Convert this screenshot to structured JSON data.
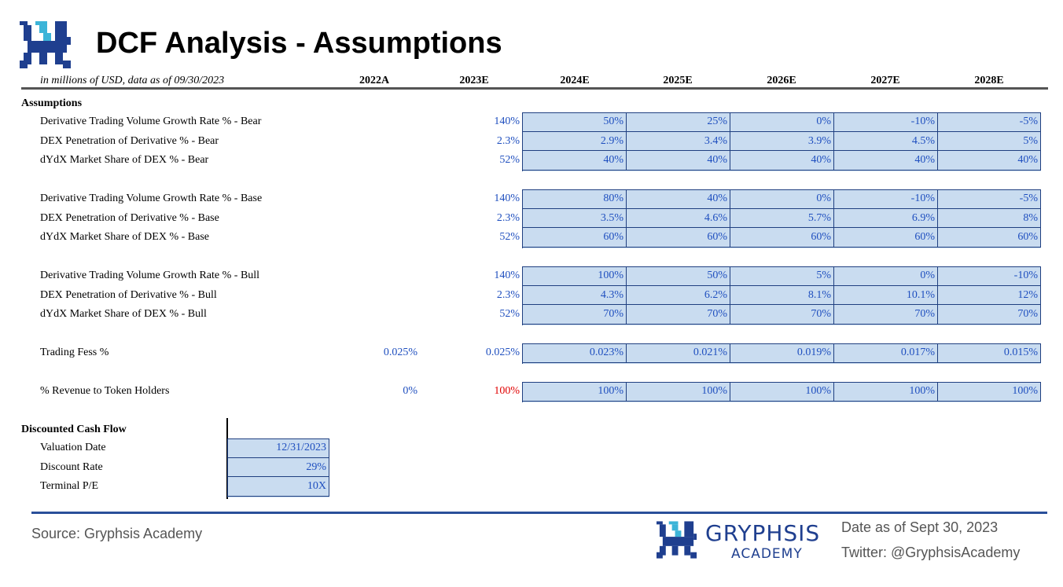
{
  "title": "DCF Analysis - Assumptions",
  "subtitle": "in millions of USD, data as of 09/30/2023",
  "years": [
    "2022A",
    "2023E",
    "2024E",
    "2025E",
    "2026E",
    "2027E",
    "2028E"
  ],
  "assumptions_label": "Assumptions",
  "groups": [
    [
      {
        "label": "Derivative Trading Volume Growth Rate % - Bear",
        "y2022": "",
        "y2023": "140%",
        "proj": [
          "50%",
          "25%",
          "0%",
          "-10%",
          "-5%"
        ]
      },
      {
        "label": "DEX Penetration of Derivative % - Bear",
        "y2022": "",
        "y2023": "2.3%",
        "proj": [
          "2.9%",
          "3.4%",
          "3.9%",
          "4.5%",
          "5%"
        ]
      },
      {
        "label": "dYdX Market Share of DEX % - Bear",
        "y2022": "",
        "y2023": "52%",
        "proj": [
          "40%",
          "40%",
          "40%",
          "40%",
          "40%"
        ]
      }
    ],
    [
      {
        "label": "Derivative Trading Volume Growth Rate % - Base",
        "y2022": "",
        "y2023": "140%",
        "proj": [
          "80%",
          "40%",
          "0%",
          "-10%",
          "-5%"
        ]
      },
      {
        "label": "DEX Penetration of Derivative % - Base",
        "y2022": "",
        "y2023": "2.3%",
        "proj": [
          "3.5%",
          "4.6%",
          "5.7%",
          "6.9%",
          "8%"
        ]
      },
      {
        "label": "dYdX Market Share of DEX % - Base",
        "y2022": "",
        "y2023": "52%",
        "proj": [
          "60%",
          "60%",
          "60%",
          "60%",
          "60%"
        ]
      }
    ],
    [
      {
        "label": "Derivative Trading Volume Growth Rate % - Bull",
        "y2022": "",
        "y2023": "140%",
        "proj": [
          "100%",
          "50%",
          "5%",
          "0%",
          "-10%"
        ]
      },
      {
        "label": "DEX Penetration of Derivative % - Bull",
        "y2022": "",
        "y2023": "2.3%",
        "proj": [
          "4.3%",
          "6.2%",
          "8.1%",
          "10.1%",
          "12%"
        ]
      },
      {
        "label": "dYdX Market Share of DEX % - Bull",
        "y2022": "",
        "y2023": "52%",
        "proj": [
          "70%",
          "70%",
          "70%",
          "70%",
          "70%"
        ]
      }
    ],
    [
      {
        "label": "Trading Fess %",
        "y2022": "0.025%",
        "y2023": "0.025%",
        "proj": [
          "0.023%",
          "0.021%",
          "0.019%",
          "0.017%",
          "0.015%"
        ]
      }
    ],
    [
      {
        "label": "% Revenue to Token Holders",
        "y2022": "0%",
        "y2023": "100%",
        "y2023_red": true,
        "proj": [
          "100%",
          "100%",
          "100%",
          "100%",
          "100%"
        ]
      }
    ]
  ],
  "dcf": {
    "label": "Discounted Cash Flow",
    "rows": [
      {
        "label": "Valuation Date",
        "value": "12/31/2023"
      },
      {
        "label": "Discount Rate",
        "value": "29%"
      },
      {
        "label": "Terminal P/E",
        "value": "10X"
      }
    ]
  },
  "footer": {
    "source": "Source: Gryphsis Academy",
    "brand": "GRYPHSIS",
    "brand_sub": "ACADEMY",
    "date": "Date as of Sept 30, 2023",
    "twitter": "Twitter: @GryphsisAcademy"
  },
  "colors": {
    "accent": "#1f4fbf",
    "box_fill": "#c9dcf0",
    "border": "#1f3f80",
    "negative_highlight": "#e00000"
  }
}
